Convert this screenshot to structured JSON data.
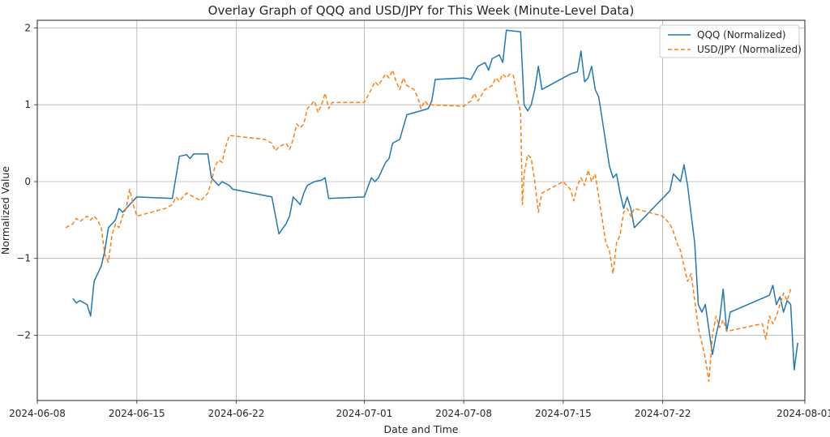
{
  "chart_data": {
    "type": "line",
    "title": "Overlay Graph of QQQ and USD/JPY for This Week (Minute-Level Data)",
    "xlabel": "Date and Time",
    "ylabel": "Normalized Value",
    "xlim": [
      "2024-06-08",
      "2024-08-01"
    ],
    "ylim": [
      -2.85,
      2.1
    ],
    "x_ticks": [
      "2024-06-08",
      "2024-06-15",
      "2024-06-22",
      "2024-07-01",
      "2024-07-08",
      "2024-07-15",
      "2024-07-22",
      "2024-08-01"
    ],
    "y_ticks": [
      2,
      1,
      0,
      -1,
      -2
    ],
    "y_tick_labels": [
      "2",
      "1",
      "0",
      "−1",
      "−2"
    ],
    "grid": true,
    "legend_position": "top-right",
    "series": [
      {
        "name": "QQQ (Normalized)",
        "color": "#1f77b4",
        "style": "solid",
        "points": [
          [
            "2024-06-10T12:00",
            -1.52
          ],
          [
            "2024-06-10T18:00",
            -1.58
          ],
          [
            "2024-06-11T00:00",
            -1.55
          ],
          [
            "2024-06-11T12:00",
            -1.6
          ],
          [
            "2024-06-11T18:00",
            -1.75
          ],
          [
            "2024-06-12T00:00",
            -1.3
          ],
          [
            "2024-06-12T12:00",
            -1.1
          ],
          [
            "2024-06-12T18:00",
            -0.9
          ],
          [
            "2024-06-13T00:00",
            -0.6
          ],
          [
            "2024-06-13T06:00",
            -0.55
          ],
          [
            "2024-06-13T12:00",
            -0.5
          ],
          [
            "2024-06-13T18:00",
            -0.35
          ],
          [
            "2024-06-14T00:00",
            -0.4
          ],
          [
            "2024-06-14T12:00",
            -0.3
          ],
          [
            "2024-06-14T18:00",
            -0.25
          ],
          [
            "2024-06-15T00:00",
            -0.2
          ],
          [
            "2024-06-17T12:00",
            -0.22
          ],
          [
            "2024-06-18T00:00",
            0.33
          ],
          [
            "2024-06-18T12:00",
            0.35
          ],
          [
            "2024-06-18T18:00",
            0.3
          ],
          [
            "2024-06-19T00:00",
            0.36
          ],
          [
            "2024-06-20T00:00",
            0.36
          ],
          [
            "2024-06-20T06:00",
            0.05
          ],
          [
            "2024-06-20T18:00",
            -0.05
          ],
          [
            "2024-06-21T00:00",
            0.0
          ],
          [
            "2024-06-21T12:00",
            -0.05
          ],
          [
            "2024-06-21T18:00",
            -0.1
          ],
          [
            "2024-06-24T12:00",
            -0.2
          ],
          [
            "2024-06-25T00:00",
            -0.68
          ],
          [
            "2024-06-25T12:00",
            -0.55
          ],
          [
            "2024-06-25T18:00",
            -0.45
          ],
          [
            "2024-06-26T00:00",
            -0.2
          ],
          [
            "2024-06-26T12:00",
            -0.3
          ],
          [
            "2024-06-26T18:00",
            -0.15
          ],
          [
            "2024-06-27T00:00",
            -0.05
          ],
          [
            "2024-06-27T12:00",
            0.0
          ],
          [
            "2024-06-28T00:00",
            0.02
          ],
          [
            "2024-06-28T06:00",
            0.05
          ],
          [
            "2024-06-28T12:00",
            -0.22
          ],
          [
            "2024-07-01T00:00",
            -0.2
          ],
          [
            "2024-07-01T12:00",
            0.05
          ],
          [
            "2024-07-01T18:00",
            0.0
          ],
          [
            "2024-07-02T00:00",
            0.05
          ],
          [
            "2024-07-02T12:00",
            0.25
          ],
          [
            "2024-07-02T18:00",
            0.3
          ],
          [
            "2024-07-03T00:00",
            0.5
          ],
          [
            "2024-07-03T12:00",
            0.55
          ],
          [
            "2024-07-04T00:00",
            0.87
          ],
          [
            "2024-07-05T12:00",
            0.95
          ],
          [
            "2024-07-05T18:00",
            1.05
          ],
          [
            "2024-07-06T00:00",
            1.33
          ],
          [
            "2024-07-08T00:00",
            1.35
          ],
          [
            "2024-07-08T12:00",
            1.33
          ],
          [
            "2024-07-09T00:00",
            1.5
          ],
          [
            "2024-07-09T12:00",
            1.55
          ],
          [
            "2024-07-09T18:00",
            1.45
          ],
          [
            "2024-07-10T00:00",
            1.6
          ],
          [
            "2024-07-10T12:00",
            1.65
          ],
          [
            "2024-07-10T18:00",
            1.55
          ],
          [
            "2024-07-11T00:00",
            1.97
          ],
          [
            "2024-07-12T00:00",
            1.95
          ],
          [
            "2024-07-12T06:00",
            1.0
          ],
          [
            "2024-07-12T12:00",
            0.92
          ],
          [
            "2024-07-12T18:00",
            1.0
          ],
          [
            "2024-07-13T00:00",
            1.2
          ],
          [
            "2024-07-13T06:00",
            1.5
          ],
          [
            "2024-07-13T12:00",
            1.2
          ],
          [
            "2024-07-15T12:00",
            1.4
          ],
          [
            "2024-07-16T00:00",
            1.43
          ],
          [
            "2024-07-16T06:00",
            1.7
          ],
          [
            "2024-07-16T12:00",
            1.3
          ],
          [
            "2024-07-16T18:00",
            1.35
          ],
          [
            "2024-07-17T00:00",
            1.5
          ],
          [
            "2024-07-17T06:00",
            1.2
          ],
          [
            "2024-07-17T12:00",
            1.1
          ],
          [
            "2024-07-18T00:00",
            0.5
          ],
          [
            "2024-07-18T06:00",
            0.2
          ],
          [
            "2024-07-18T12:00",
            0.05
          ],
          [
            "2024-07-18T18:00",
            0.1
          ],
          [
            "2024-07-19T00:00",
            -0.15
          ],
          [
            "2024-07-19T06:00",
            -0.35
          ],
          [
            "2024-07-19T12:00",
            -0.2
          ],
          [
            "2024-07-19T18:00",
            -0.35
          ],
          [
            "2024-07-20T00:00",
            -0.6
          ],
          [
            "2024-07-22T12:00",
            -0.12
          ],
          [
            "2024-07-22T18:00",
            0.1
          ],
          [
            "2024-07-23T00:00",
            0.05
          ],
          [
            "2024-07-23T06:00",
            0.0
          ],
          [
            "2024-07-23T12:00",
            0.22
          ],
          [
            "2024-07-23T18:00",
            -0.05
          ],
          [
            "2024-07-24T06:00",
            -0.8
          ],
          [
            "2024-07-24T12:00",
            -1.6
          ],
          [
            "2024-07-24T18:00",
            -1.7
          ],
          [
            "2024-07-25T00:00",
            -1.6
          ],
          [
            "2024-07-25T12:00",
            -2.25
          ],
          [
            "2024-07-25T18:00",
            -2.0
          ],
          [
            "2024-07-26T00:00",
            -1.8
          ],
          [
            "2024-07-26T06:00",
            -1.4
          ],
          [
            "2024-07-26T12:00",
            -1.95
          ],
          [
            "2024-07-26T18:00",
            -1.7
          ],
          [
            "2024-07-29T12:00",
            -1.48
          ],
          [
            "2024-07-29T18:00",
            -1.35
          ],
          [
            "2024-07-30T00:00",
            -1.6
          ],
          [
            "2024-07-30T06:00",
            -1.5
          ],
          [
            "2024-07-30T12:00",
            -1.7
          ],
          [
            "2024-07-30T18:00",
            -1.55
          ],
          [
            "2024-07-31T00:00",
            -1.6
          ],
          [
            "2024-07-31T06:00",
            -2.45
          ],
          [
            "2024-07-31T12:00",
            -2.1
          ]
        ]
      },
      {
        "name": "USD/JPY (Normalized)",
        "color": "#ff7f0e",
        "style": "dashed",
        "points": [
          [
            "2024-06-10T00:00",
            -0.6
          ],
          [
            "2024-06-10T12:00",
            -0.55
          ],
          [
            "2024-06-10T18:00",
            -0.48
          ],
          [
            "2024-06-11T00:00",
            -0.52
          ],
          [
            "2024-06-11T12:00",
            -0.45
          ],
          [
            "2024-06-11T18:00",
            -0.5
          ],
          [
            "2024-06-12T00:00",
            -0.45
          ],
          [
            "2024-06-12T06:00",
            -0.5
          ],
          [
            "2024-06-12T12:00",
            -0.6
          ],
          [
            "2024-06-12T18:00",
            -0.95
          ],
          [
            "2024-06-13T00:00",
            -1.05
          ],
          [
            "2024-06-13T06:00",
            -0.7
          ],
          [
            "2024-06-13T12:00",
            -0.55
          ],
          [
            "2024-06-13T18:00",
            -0.6
          ],
          [
            "2024-06-14T00:00",
            -0.45
          ],
          [
            "2024-06-14T06:00",
            -0.35
          ],
          [
            "2024-06-14T12:00",
            -0.1
          ],
          [
            "2024-06-14T18:00",
            -0.3
          ],
          [
            "2024-06-15T00:00",
            -0.45
          ],
          [
            "2024-06-17T00:00",
            -0.35
          ],
          [
            "2024-06-17T12:00",
            -0.3
          ],
          [
            "2024-06-17T18:00",
            -0.2
          ],
          [
            "2024-06-18T00:00",
            -0.25
          ],
          [
            "2024-06-18T12:00",
            -0.15
          ],
          [
            "2024-06-19T00:00",
            -0.2
          ],
          [
            "2024-06-19T12:00",
            -0.25
          ],
          [
            "2024-06-20T00:00",
            -0.15
          ],
          [
            "2024-06-20T06:00",
            0.0
          ],
          [
            "2024-06-20T12:00",
            0.2
          ],
          [
            "2024-06-20T18:00",
            0.28
          ],
          [
            "2024-06-21T00:00",
            0.25
          ],
          [
            "2024-06-21T06:00",
            0.45
          ],
          [
            "2024-06-21T12:00",
            0.6
          ],
          [
            "2024-06-24T00:00",
            0.55
          ],
          [
            "2024-06-24T12:00",
            0.5
          ],
          [
            "2024-06-24T18:00",
            0.4
          ],
          [
            "2024-06-25T00:00",
            0.45
          ],
          [
            "2024-06-25T12:00",
            0.5
          ],
          [
            "2024-06-25T18:00",
            0.42
          ],
          [
            "2024-06-26T00:00",
            0.55
          ],
          [
            "2024-06-26T06:00",
            0.75
          ],
          [
            "2024-06-26T12:00",
            0.7
          ],
          [
            "2024-06-26T18:00",
            0.75
          ],
          [
            "2024-06-27T00:00",
            0.95
          ],
          [
            "2024-06-27T12:00",
            1.05
          ],
          [
            "2024-06-27T18:00",
            0.9
          ],
          [
            "2024-06-28T00:00",
            1.0
          ],
          [
            "2024-06-28T06:00",
            1.15
          ],
          [
            "2024-06-28T12:00",
            0.95
          ],
          [
            "2024-06-28T18:00",
            1.03
          ],
          [
            "2024-07-01T00:00",
            1.03
          ],
          [
            "2024-07-01T12:00",
            1.2
          ],
          [
            "2024-07-01T18:00",
            1.3
          ],
          [
            "2024-07-02T00:00",
            1.25
          ],
          [
            "2024-07-02T12:00",
            1.4
          ],
          [
            "2024-07-02T18:00",
            1.35
          ],
          [
            "2024-07-03T00:00",
            1.45
          ],
          [
            "2024-07-03T06:00",
            1.3
          ],
          [
            "2024-07-03T12:00",
            1.2
          ],
          [
            "2024-07-03T18:00",
            1.35
          ],
          [
            "2024-07-04T00:00",
            1.25
          ],
          [
            "2024-07-04T12:00",
            1.2
          ],
          [
            "2024-07-04T18:00",
            1.1
          ],
          [
            "2024-07-05T00:00",
            0.95
          ],
          [
            "2024-07-05T06:00",
            1.05
          ],
          [
            "2024-07-05T12:00",
            1.0
          ],
          [
            "2024-07-08T00:00",
            0.98
          ],
          [
            "2024-07-08T12:00",
            1.05
          ],
          [
            "2024-07-08T18:00",
            1.15
          ],
          [
            "2024-07-09T00:00",
            1.05
          ],
          [
            "2024-07-09T12:00",
            1.2
          ],
          [
            "2024-07-10T00:00",
            1.25
          ],
          [
            "2024-07-10T06:00",
            1.35
          ],
          [
            "2024-07-10T12:00",
            1.3
          ],
          [
            "2024-07-10T18:00",
            1.4
          ],
          [
            "2024-07-11T00:00",
            1.35
          ],
          [
            "2024-07-11T06:00",
            1.4
          ],
          [
            "2024-07-11T12:00",
            1.38
          ],
          [
            "2024-07-11T18:00",
            1.1
          ],
          [
            "2024-07-12T00:00",
            0.9
          ],
          [
            "2024-07-12T03:00",
            -0.3
          ],
          [
            "2024-07-12T06:00",
            0.1
          ],
          [
            "2024-07-12T12:00",
            0.35
          ],
          [
            "2024-07-12T18:00",
            0.3
          ],
          [
            "2024-07-13T00:00",
            0.0
          ],
          [
            "2024-07-13T06:00",
            -0.4
          ],
          [
            "2024-07-13T12:00",
            -0.15
          ],
          [
            "2024-07-15T00:00",
            0.0
          ],
          [
            "2024-07-15T12:00",
            -0.1
          ],
          [
            "2024-07-15T18:00",
            -0.25
          ],
          [
            "2024-07-16T00:00",
            -0.05
          ],
          [
            "2024-07-16T06:00",
            0.05
          ],
          [
            "2024-07-16T12:00",
            -0.05
          ],
          [
            "2024-07-16T18:00",
            0.15
          ],
          [
            "2024-07-17T00:00",
            0.0
          ],
          [
            "2024-07-17T06:00",
            0.1
          ],
          [
            "2024-07-17T12:00",
            -0.2
          ],
          [
            "2024-07-17T18:00",
            -0.5
          ],
          [
            "2024-07-18T00:00",
            -0.8
          ],
          [
            "2024-07-18T06:00",
            -0.9
          ],
          [
            "2024-07-18T12:00",
            -1.2
          ],
          [
            "2024-07-18T18:00",
            -0.8
          ],
          [
            "2024-07-19T00:00",
            -0.7
          ],
          [
            "2024-07-19T06:00",
            -0.4
          ],
          [
            "2024-07-19T12:00",
            -0.35
          ],
          [
            "2024-07-19T18:00",
            -0.45
          ],
          [
            "2024-07-20T00:00",
            -0.35
          ],
          [
            "2024-07-22T00:00",
            -0.45
          ],
          [
            "2024-07-22T12:00",
            -0.55
          ],
          [
            "2024-07-22T18:00",
            -0.65
          ],
          [
            "2024-07-23T00:00",
            -0.8
          ],
          [
            "2024-07-23T06:00",
            -0.9
          ],
          [
            "2024-07-23T12:00",
            -1.1
          ],
          [
            "2024-07-23T18:00",
            -1.3
          ],
          [
            "2024-07-24T00:00",
            -1.2
          ],
          [
            "2024-07-24T06:00",
            -1.55
          ],
          [
            "2024-07-24T12:00",
            -1.9
          ],
          [
            "2024-07-24T18:00",
            -2.1
          ],
          [
            "2024-07-25T00:00",
            -2.3
          ],
          [
            "2024-07-25T06:00",
            -2.6
          ],
          [
            "2024-07-25T12:00",
            -2.0
          ],
          [
            "2024-07-25T18:00",
            -1.75
          ],
          [
            "2024-07-26T00:00",
            -1.9
          ],
          [
            "2024-07-26T06:00",
            -1.8
          ],
          [
            "2024-07-26T12:00",
            -1.95
          ],
          [
            "2024-07-29T00:00",
            -1.85
          ],
          [
            "2024-07-29T06:00",
            -2.05
          ],
          [
            "2024-07-29T12:00",
            -1.75
          ],
          [
            "2024-07-29T18:00",
            -1.85
          ],
          [
            "2024-07-30T00:00",
            -1.75
          ],
          [
            "2024-07-30T06:00",
            -1.6
          ],
          [
            "2024-07-30T12:00",
            -1.45
          ],
          [
            "2024-07-30T18:00",
            -1.55
          ],
          [
            "2024-07-31T00:00",
            -1.4
          ]
        ]
      }
    ]
  }
}
